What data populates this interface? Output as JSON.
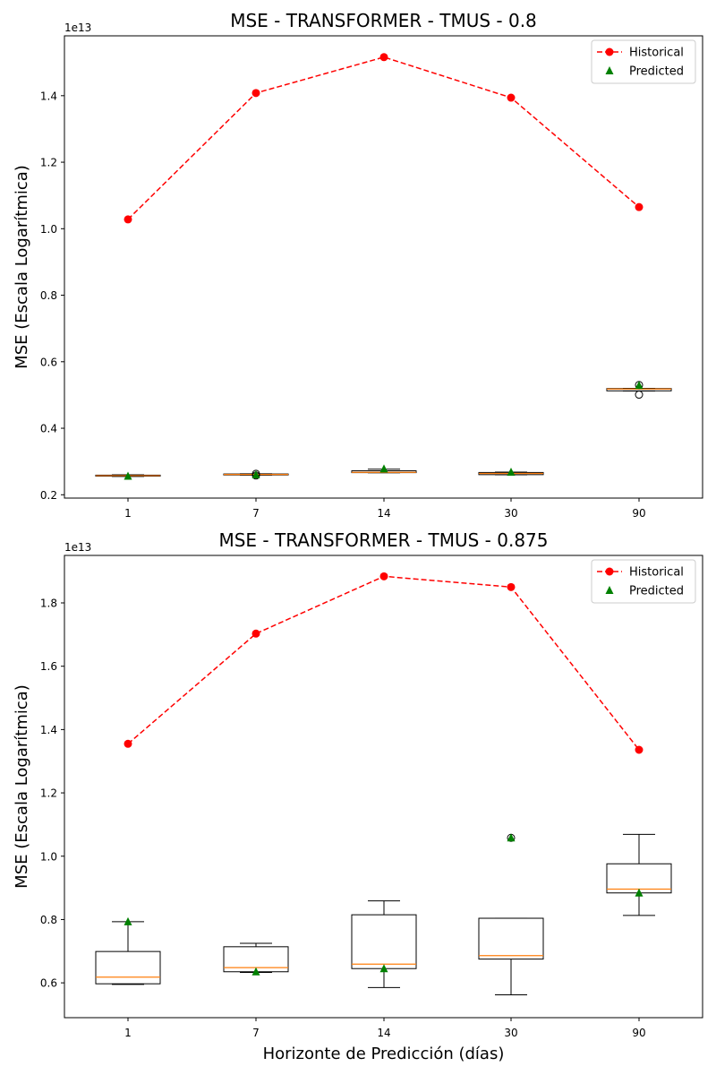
{
  "colors": {
    "historical": "#ff0000",
    "predicted": "#008000",
    "median": "#ff7f0e",
    "box": "#000000"
  },
  "chart_data": [
    {
      "type": "box",
      "title": "MSE - TRANSFORMER - TMUS - 0.8",
      "xlabel": "",
      "ylabel": "MSE (Escala Logarítmica)",
      "offset_text": "1e13",
      "scale": 10000000000000.0,
      "categories": [
        "1",
        "7",
        "14",
        "30",
        "90"
      ],
      "ylim": [
        0.19,
        1.58
      ],
      "yticks": [
        0.2,
        0.4,
        0.6,
        0.8,
        1.0,
        1.2,
        1.4
      ],
      "ytick_labels": [
        "0.2",
        "0.4",
        "0.6",
        "0.8",
        "1.0",
        "1.2",
        "1.4"
      ],
      "legend": {
        "position": "top-right",
        "entries": [
          "Historical",
          "Predicted"
        ]
      },
      "historical": [
        1.028,
        1.408,
        1.516,
        1.394,
        1.065
      ],
      "predicted": [
        0.256,
        0.26,
        0.278,
        0.268,
        0.529
      ],
      "boxes": [
        {
          "whislo": 0.255,
          "q1": 0.256,
          "med": 0.2575,
          "q3": 0.259,
          "whishi": 0.26,
          "fliers": []
        },
        {
          "whislo": 0.259,
          "q1": 0.2595,
          "med": 0.261,
          "q3": 0.2625,
          "whishi": 0.263,
          "fliers": [
            0.258,
            0.263
          ]
        },
        {
          "whislo": 0.266,
          "q1": 0.2665,
          "med": 0.2675,
          "q3": 0.272,
          "whishi": 0.277,
          "fliers": []
        },
        {
          "whislo": 0.26,
          "q1": 0.2605,
          "med": 0.264,
          "q3": 0.267,
          "whishi": 0.268,
          "fliers": []
        },
        {
          "whislo": 0.512,
          "q1": 0.5125,
          "med": 0.518,
          "q3": 0.5195,
          "whishi": 0.52,
          "fliers": [
            0.501,
            0.53
          ]
        }
      ]
    },
    {
      "type": "box",
      "title": "MSE - TRANSFORMER - TMUS - 0.875",
      "xlabel": "Horizonte de Predicción (días)",
      "ylabel": "MSE (Escala Logarítmica)",
      "offset_text": "1e13",
      "scale": 10000000000000.0,
      "categories": [
        "1",
        "7",
        "14",
        "30",
        "90"
      ],
      "ylim": [
        0.49,
        1.95
      ],
      "yticks": [
        0.6,
        0.8,
        1.0,
        1.2,
        1.4,
        1.6,
        1.8
      ],
      "ytick_labels": [
        "0.6",
        "0.8",
        "1.0",
        "1.2",
        "1.4",
        "1.6",
        "1.8"
      ],
      "legend": {
        "position": "top-right",
        "entries": [
          "Historical",
          "Predicted"
        ]
      },
      "historical": [
        1.355,
        1.703,
        1.884,
        1.85,
        1.336
      ],
      "predicted": [
        0.793,
        0.635,
        0.645,
        1.058,
        0.884
      ],
      "boxes": [
        {
          "whislo": 0.595,
          "q1": 0.597,
          "med": 0.618,
          "q3": 0.699,
          "whishi": 0.793,
          "fliers": []
        },
        {
          "whislo": 0.633,
          "q1": 0.635,
          "med": 0.648,
          "q3": 0.714,
          "whishi": 0.725,
          "fliers": []
        },
        {
          "whislo": 0.585,
          "q1": 0.645,
          "med": 0.659,
          "q3": 0.815,
          "whishi": 0.859,
          "fliers": []
        },
        {
          "whislo": 0.562,
          "q1": 0.675,
          "med": 0.686,
          "q3": 0.804,
          "whishi": 0.804,
          "fliers": [
            1.058
          ]
        },
        {
          "whislo": 0.813,
          "q1": 0.884,
          "med": 0.896,
          "q3": 0.976,
          "whishi": 1.069,
          "fliers": []
        }
      ]
    }
  ]
}
